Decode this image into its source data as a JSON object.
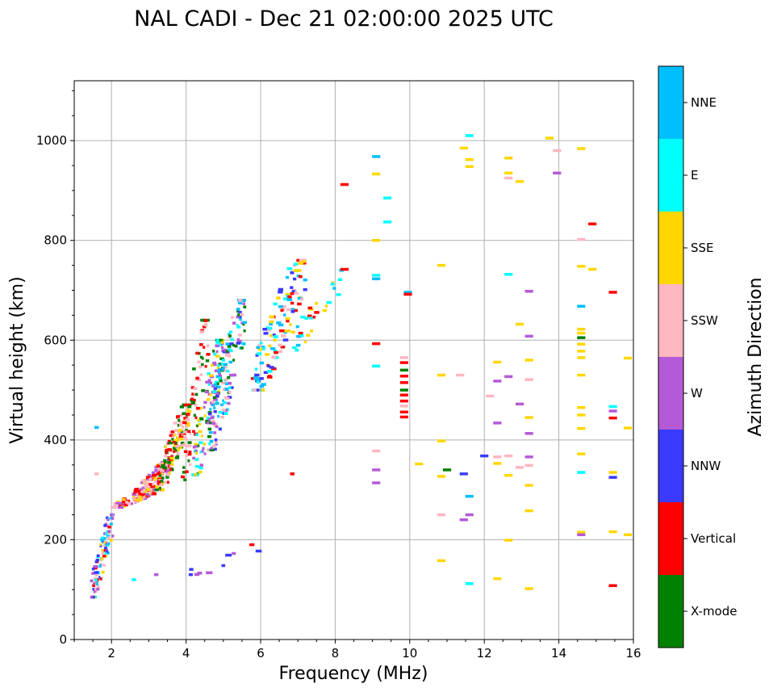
{
  "chart_data": {
    "type": "scatter",
    "title": "NAL CADI - Dec 21 02:00:00 2025 UTC",
    "xlabel": "Frequency (MHz)",
    "ylabel": "Virtual height (km)",
    "xlim": [
      1,
      16
    ],
    "ylim": [
      0,
      1120
    ],
    "xticks": [
      2,
      4,
      6,
      8,
      10,
      12,
      14,
      16
    ],
    "yticks": [
      0,
      200,
      400,
      600,
      800,
      1000
    ],
    "grid": true,
    "colorbar": {
      "label": "Azimuth Direction",
      "categories": [
        {
          "name": "X-mode",
          "color": "#008000"
        },
        {
          "name": "Vertical",
          "color": "#ff0000"
        },
        {
          "name": "NNW",
          "color": "#3a3aff"
        },
        {
          "name": "W",
          "color": "#b45ad6"
        },
        {
          "name": "SSW",
          "color": "#ffb6c1"
        },
        {
          "name": "SSE",
          "color": "#ffd700"
        },
        {
          "name": "E",
          "color": "#00ffff"
        },
        {
          "name": "NNE",
          "color": "#00bfff"
        }
      ]
    },
    "clusters": [
      {
        "x": [
          1.45,
          2.05
        ],
        "y": [
          85,
          250
        ],
        "n": 110,
        "dirs": [
          "NNE",
          "E",
          "W",
          "SSE",
          "SSW",
          "NNW",
          "Vertical"
        ],
        "w": 0.08
      },
      {
        "x": [
          2.0,
          3.2
        ],
        "y": [
          265,
          300
        ],
        "n": 70,
        "dirs": [
          "SSE",
          "SSW",
          "Vertical",
          "W"
        ],
        "w": 0.1
      },
      {
        "x": [
          2.6,
          3.6
        ],
        "y": [
          280,
          360
        ],
        "n": 120,
        "dirs": [
          "Vertical",
          "SSE",
          "W",
          "SSW"
        ],
        "w": 0.1
      },
      {
        "x": [
          3.2,
          4.1
        ],
        "y": [
          300,
          470
        ],
        "n": 160,
        "dirs": [
          "Vertical",
          "SSE",
          "X-mode",
          "SSW"
        ],
        "w": 0.1
      },
      {
        "x": [
          3.9,
          4.6
        ],
        "y": [
          320,
          640
        ],
        "n": 70,
        "dirs": [
          "Vertical",
          "SSW",
          "X-mode"
        ],
        "w": 0.1
      },
      {
        "x": [
          4.2,
          5.0
        ],
        "y": [
          330,
          600
        ],
        "n": 110,
        "dirs": [
          "X-mode",
          "SSE",
          "E",
          "W"
        ],
        "w": 0.1
      },
      {
        "x": [
          4.6,
          5.6
        ],
        "y": [
          380,
          680
        ],
        "n": 160,
        "dirs": [
          "W",
          "SSW",
          "E",
          "NNE",
          "NNW",
          "X-mode"
        ],
        "w": 0.1
      },
      {
        "x": [
          5.8,
          7.2
        ],
        "y": [
          500,
          760
        ],
        "n": 130,
        "dirs": [
          "E",
          "NNE",
          "SSE",
          "SSW",
          "Vertical",
          "NNW"
        ],
        "w": 0.12
      },
      {
        "x": [
          6.8,
          8.2
        ],
        "y": [
          580,
          740
        ],
        "n": 30,
        "dirs": [
          "E",
          "NNE",
          "SSE",
          "Vertical"
        ],
        "w": 0.12
      },
      {
        "x": [
          4.0,
          6.0
        ],
        "y": [
          130,
          190
        ],
        "n": 10,
        "dirs": [
          "W",
          "NNW",
          "Vertical"
        ],
        "w": 0.15
      }
    ],
    "points": [
      {
        "f": 8.25,
        "h": 912,
        "d": "Vertical"
      },
      {
        "f": 8.25,
        "h": 742,
        "d": "Vertical"
      },
      {
        "f": 9.1,
        "h": 968,
        "d": "NNE"
      },
      {
        "f": 9.1,
        "h": 933,
        "d": "SSE"
      },
      {
        "f": 9.4,
        "h": 885,
        "d": "E"
      },
      {
        "f": 9.4,
        "h": 837,
        "d": "E"
      },
      {
        "f": 9.1,
        "h": 800,
        "d": "SSE"
      },
      {
        "f": 9.1,
        "h": 730,
        "d": "E"
      },
      {
        "f": 9.1,
        "h": 723,
        "d": "NNE"
      },
      {
        "f": 9.1,
        "h": 593,
        "d": "Vertical"
      },
      {
        "f": 9.1,
        "h": 548,
        "d": "E"
      },
      {
        "f": 9.1,
        "h": 378,
        "d": "SSW"
      },
      {
        "f": 9.1,
        "h": 340,
        "d": "W"
      },
      {
        "f": 9.1,
        "h": 314,
        "d": "W"
      },
      {
        "f": 9.85,
        "h": 565,
        "d": "SSW"
      },
      {
        "f": 9.85,
        "h": 555,
        "d": "Vertical"
      },
      {
        "f": 9.85,
        "h": 540,
        "d": "X-mode"
      },
      {
        "f": 9.85,
        "h": 528,
        "d": "Vertical"
      },
      {
        "f": 9.85,
        "h": 515,
        "d": "Vertical"
      },
      {
        "f": 9.85,
        "h": 500,
        "d": "X-mode"
      },
      {
        "f": 9.85,
        "h": 490,
        "d": "Vertical"
      },
      {
        "f": 9.85,
        "h": 478,
        "d": "Vertical"
      },
      {
        "f": 9.85,
        "h": 468,
        "d": "SSW"
      },
      {
        "f": 9.85,
        "h": 456,
        "d": "Vertical"
      },
      {
        "f": 9.85,
        "h": 446,
        "d": "Vertical"
      },
      {
        "f": 9.95,
        "h": 696,
        "d": "NNE"
      },
      {
        "f": 9.95,
        "h": 692,
        "d": "Vertical"
      },
      {
        "f": 10.25,
        "h": 352,
        "d": "SSE"
      },
      {
        "f": 10.85,
        "h": 750,
        "d": "SSE"
      },
      {
        "f": 10.85,
        "h": 530,
        "d": "SSE"
      },
      {
        "f": 10.85,
        "h": 398,
        "d": "SSE"
      },
      {
        "f": 10.85,
        "h": 327,
        "d": "SSE"
      },
      {
        "f": 10.85,
        "h": 250,
        "d": "SSW"
      },
      {
        "f": 10.85,
        "h": 158,
        "d": "SSE"
      },
      {
        "f": 11.0,
        "h": 340,
        "d": "X-mode"
      },
      {
        "f": 11.35,
        "h": 530,
        "d": "SSW"
      },
      {
        "f": 11.45,
        "h": 985,
        "d": "SSE"
      },
      {
        "f": 11.45,
        "h": 332,
        "d": "NNW"
      },
      {
        "f": 11.45,
        "h": 240,
        "d": "W"
      },
      {
        "f": 11.6,
        "h": 1010,
        "d": "E"
      },
      {
        "f": 11.6,
        "h": 962,
        "d": "SSE"
      },
      {
        "f": 11.6,
        "h": 948,
        "d": "SSE"
      },
      {
        "f": 11.6,
        "h": 287,
        "d": "NNE"
      },
      {
        "f": 11.6,
        "h": 250,
        "d": "W"
      },
      {
        "f": 11.6,
        "h": 112,
        "d": "E"
      },
      {
        "f": 12.0,
        "h": 368,
        "d": "NNW"
      },
      {
        "f": 12.15,
        "h": 488,
        "d": "SSW"
      },
      {
        "f": 12.35,
        "h": 556,
        "d": "SSE"
      },
      {
        "f": 12.35,
        "h": 518,
        "d": "W"
      },
      {
        "f": 12.35,
        "h": 434,
        "d": "W"
      },
      {
        "f": 12.35,
        "h": 366,
        "d": "SSW"
      },
      {
        "f": 12.35,
        "h": 353,
        "d": "SSE"
      },
      {
        "f": 12.35,
        "h": 122,
        "d": "SSE"
      },
      {
        "f": 12.65,
        "h": 965,
        "d": "SSE"
      },
      {
        "f": 12.65,
        "h": 935,
        "d": "SSE"
      },
      {
        "f": 12.65,
        "h": 925,
        "d": "SSW"
      },
      {
        "f": 12.65,
        "h": 732,
        "d": "E"
      },
      {
        "f": 12.65,
        "h": 527,
        "d": "W"
      },
      {
        "f": 12.65,
        "h": 368,
        "d": "SSW"
      },
      {
        "f": 12.65,
        "h": 329,
        "d": "SSE"
      },
      {
        "f": 12.65,
        "h": 199,
        "d": "SSE"
      },
      {
        "f": 12.95,
        "h": 918,
        "d": "SSE"
      },
      {
        "f": 12.95,
        "h": 632,
        "d": "SSE"
      },
      {
        "f": 12.95,
        "h": 472,
        "d": "W"
      },
      {
        "f": 12.95,
        "h": 345,
        "d": "SSW"
      },
      {
        "f": 13.2,
        "h": 698,
        "d": "W"
      },
      {
        "f": 13.2,
        "h": 608,
        "d": "W"
      },
      {
        "f": 13.2,
        "h": 560,
        "d": "SSE"
      },
      {
        "f": 13.2,
        "h": 521,
        "d": "SSW"
      },
      {
        "f": 13.2,
        "h": 445,
        "d": "SSE"
      },
      {
        "f": 13.2,
        "h": 413,
        "d": "W"
      },
      {
        "f": 13.2,
        "h": 366,
        "d": "W"
      },
      {
        "f": 13.2,
        "h": 349,
        "d": "SSW"
      },
      {
        "f": 13.2,
        "h": 309,
        "d": "SSE"
      },
      {
        "f": 13.2,
        "h": 258,
        "d": "SSE"
      },
      {
        "f": 13.2,
        "h": 102,
        "d": "SSE"
      },
      {
        "f": 13.75,
        "h": 1005,
        "d": "SSE"
      },
      {
        "f": 13.95,
        "h": 980,
        "d": "SSW"
      },
      {
        "f": 13.95,
        "h": 935,
        "d": "W"
      },
      {
        "f": 14.6,
        "h": 984,
        "d": "SSE"
      },
      {
        "f": 14.6,
        "h": 802,
        "d": "SSW"
      },
      {
        "f": 14.6,
        "h": 748,
        "d": "SSE"
      },
      {
        "f": 14.6,
        "h": 668,
        "d": "NNE"
      },
      {
        "f": 14.6,
        "h": 622,
        "d": "SSE"
      },
      {
        "f": 14.6,
        "h": 614,
        "d": "SSE"
      },
      {
        "f": 14.6,
        "h": 605,
        "d": "X-mode"
      },
      {
        "f": 14.6,
        "h": 592,
        "d": "SSE"
      },
      {
        "f": 14.6,
        "h": 578,
        "d": "SSE"
      },
      {
        "f": 14.6,
        "h": 565,
        "d": "SSE"
      },
      {
        "f": 14.6,
        "h": 530,
        "d": "SSE"
      },
      {
        "f": 14.6,
        "h": 465,
        "d": "SSE"
      },
      {
        "f": 14.6,
        "h": 450,
        "d": "SSE"
      },
      {
        "f": 14.6,
        "h": 423,
        "d": "SSE"
      },
      {
        "f": 14.6,
        "h": 372,
        "d": "SSE"
      },
      {
        "f": 14.6,
        "h": 335,
        "d": "E"
      },
      {
        "f": 14.6,
        "h": 215,
        "d": "SSE"
      },
      {
        "f": 14.6,
        "h": 210,
        "d": "W"
      },
      {
        "f": 14.9,
        "h": 833,
        "d": "Vertical"
      },
      {
        "f": 14.9,
        "h": 742,
        "d": "SSE"
      },
      {
        "f": 15.45,
        "h": 696,
        "d": "Vertical"
      },
      {
        "f": 15.45,
        "h": 467,
        "d": "E"
      },
      {
        "f": 15.45,
        "h": 458,
        "d": "W"
      },
      {
        "f": 15.45,
        "h": 444,
        "d": "Vertical"
      },
      {
        "f": 15.45,
        "h": 335,
        "d": "SSE"
      },
      {
        "f": 15.45,
        "h": 325,
        "d": "NNW"
      },
      {
        "f": 15.45,
        "h": 216,
        "d": "SSE"
      },
      {
        "f": 15.45,
        "h": 108,
        "d": "Vertical"
      },
      {
        "f": 15.85,
        "h": 564,
        "d": "SSE"
      },
      {
        "f": 15.85,
        "h": 424,
        "d": "SSE"
      },
      {
        "f": 15.85,
        "h": 210,
        "d": "SSE"
      },
      {
        "f": 1.6,
        "h": 425,
        "d": "NNE"
      },
      {
        "f": 1.6,
        "h": 332,
        "d": "SSW"
      },
      {
        "f": 3.2,
        "h": 130,
        "d": "W"
      },
      {
        "f": 6.85,
        "h": 332,
        "d": "Vertical"
      },
      {
        "f": 2.6,
        "h": 120,
        "d": "E"
      }
    ]
  }
}
